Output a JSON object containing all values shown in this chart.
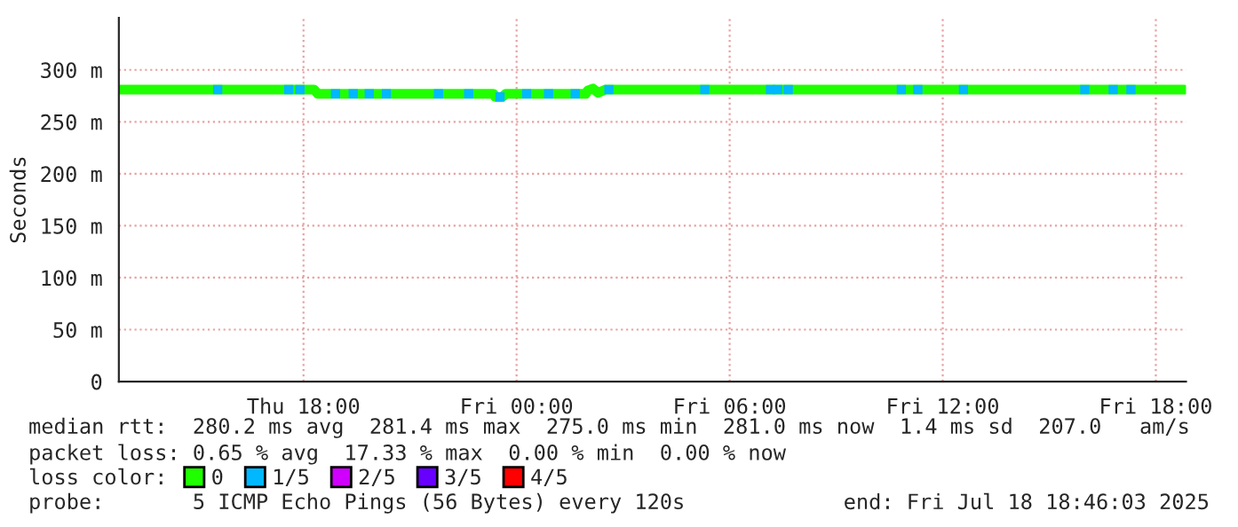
{
  "chart_data": {
    "type": "line",
    "ylabel": "Seconds",
    "legend_title": "loss color:",
    "xlim": [
      "2025-07-17T12:48",
      "2025-07-18T18:51"
    ],
    "xticks": [
      {
        "value": "2025-07-17T18:00",
        "label": "Thu 18:00"
      },
      {
        "value": "2025-07-18T00:00",
        "label": "Fri 00:00"
      },
      {
        "value": "2025-07-18T06:00",
        "label": "Fri 06:00"
      },
      {
        "value": "2025-07-18T12:00",
        "label": "Fri 12:00"
      },
      {
        "value": "2025-07-18T18:00",
        "label": "Fri 18:00"
      }
    ],
    "ylim": [
      0,
      350
    ],
    "yticks": [
      0,
      {
        "value": 50,
        "label": "50 m"
      },
      {
        "value": 100,
        "label": "100 m"
      },
      {
        "value": 150,
        "label": "150 m"
      },
      {
        "value": 200,
        "label": "200 m"
      },
      {
        "value": 250,
        "label": "250 m"
      },
      {
        "value": 300,
        "label": "300 m"
      }
    ],
    "grid": true,
    "legend": "bottom",
    "line_style": "solid",
    "series": [
      {
        "name": "0",
        "color": "#20ff00",
        "x": [
          "2025-07-17T12:51",
          "2025-07-17T18:18",
          "2025-07-17T18:24",
          "2025-07-17T23:21",
          "2025-07-17T23:24",
          "2025-07-17T23:36",
          "2025-07-17T23:42",
          "2025-07-18T01:57",
          "2025-07-18T02:00",
          "2025-07-18T02:09",
          "2025-07-18T02:18",
          "2025-07-18T02:30",
          "2025-07-18T18:48"
        ],
        "values": [
          281,
          281,
          277,
          277,
          274,
          274,
          277,
          277,
          280,
          282,
          278,
          281,
          281
        ]
      },
      {
        "name": "1/5",
        "color": "#00b8ff",
        "type": "scatter",
        "x": [
          "2025-07-17T15:35",
          "2025-07-17T17:35",
          "2025-07-17T17:54",
          "2025-07-17T18:54",
          "2025-07-17T19:24",
          "2025-07-17T19:51",
          "2025-07-17T20:20",
          "2025-07-17T21:48",
          "2025-07-17T22:39",
          "2025-07-17T23:32",
          "2025-07-18T00:17",
          "2025-07-18T00:54",
          "2025-07-18T01:39",
          "2025-07-18T02:36",
          "2025-07-18T05:18",
          "2025-07-18T07:09",
          "2025-07-18T07:21",
          "2025-07-18T07:39",
          "2025-07-18T10:50",
          "2025-07-18T11:18",
          "2025-07-18T12:35",
          "2025-07-18T16:00",
          "2025-07-18T16:48",
          "2025-07-18T17:18"
        ],
        "values": [
          281,
          281,
          281,
          277,
          277,
          277,
          277,
          277,
          277,
          274,
          277,
          277,
          277,
          281,
          281,
          281,
          281,
          281,
          281,
          281,
          281,
          281,
          281,
          281
        ]
      },
      {
        "name": "2/5",
        "color": "#d000ff",
        "type": "scatter"
      },
      {
        "name": "3/5",
        "color": "#6800ff",
        "type": "scatter"
      },
      {
        "name": "4/5",
        "color": "#ff0000",
        "type": "scatter"
      }
    ],
    "annotations": [
      "median rtt:  280.2 ms avg  281.4 ms max  275.0 ms min  281.0 ms now  1.4 ms sd  207.0   am/s",
      "packet loss: 0.65 % avg  17.33 % max  0.00 % min  0.00 % now",
      "probe:       5 ICMP Echo Pings (56 Bytes) every 120s",
      "end: Fri Jul 18 18:46:03 2025"
    ]
  }
}
